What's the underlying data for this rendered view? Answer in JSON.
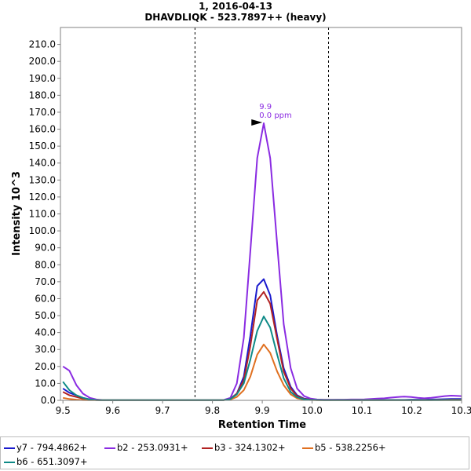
{
  "chart_data": {
    "type": "line",
    "title": "1, 2016-04-13",
    "subtitle": "DHAVDLIQK - 523.7897++ (heavy)",
    "xlabel": "Retention Time",
    "ylabel": "Intensity 10^3",
    "xlim": [
      9.495,
      10.3
    ],
    "ylim": [
      0,
      220
    ],
    "x_ticks": [
      "9.5",
      "9.6",
      "9.7",
      "9.8",
      "9.9",
      "10.0",
      "10.1",
      "10.2",
      "10.3"
    ],
    "y_ticks": [
      "0.0",
      "10.0",
      "20.0",
      "30.0",
      "40.0",
      "50.0",
      "60.0",
      "70.0",
      "80.0",
      "90.0",
      "100.0",
      "110.0",
      "120.0",
      "130.0",
      "140.0",
      "150.0",
      "160.0",
      "170.0",
      "180.0",
      "190.0",
      "200.0",
      "210.0"
    ],
    "vlines": [
      9.765,
      10.033
    ],
    "annotation": {
      "x": 9.905,
      "y": 163.5,
      "text_rt": "9.9",
      "text_ppm": "0.0 ppm",
      "color": "#8a2be2"
    },
    "x": [
      9.5,
      9.513,
      9.527,
      9.54,
      9.554,
      9.567,
      9.581,
      9.594,
      9.607,
      9.621,
      9.634,
      9.648,
      9.661,
      9.675,
      9.688,
      9.701,
      9.715,
      9.728,
      9.742,
      9.755,
      9.769,
      9.782,
      9.796,
      9.809,
      9.822,
      9.836,
      9.849,
      9.863,
      9.876,
      9.89,
      9.903,
      9.916,
      9.93,
      9.943,
      9.957,
      9.97,
      9.984,
      9.997,
      10.01,
      10.024,
      10.037,
      10.051,
      10.064,
      10.078,
      10.091,
      10.105,
      10.118,
      10.131,
      10.145,
      10.158,
      10.172,
      10.185,
      10.199,
      10.212,
      10.225,
      10.239,
      10.252,
      10.266,
      10.279,
      10.293,
      10.3
    ],
    "series": [
      {
        "name": "y7 - 794.4862+",
        "color": "#1a1acd",
        "values": [
          7,
          4.5,
          3,
          1.5,
          0.5,
          0.2,
          0.1,
          0.1,
          0.1,
          0.1,
          0.1,
          0.1,
          0.1,
          0.1,
          0.1,
          0.1,
          0.1,
          0.1,
          0.1,
          0.1,
          0.1,
          0.1,
          0.1,
          0.1,
          0.1,
          1,
          4,
          14,
          38,
          67.5,
          71.5,
          62,
          38,
          19,
          8,
          3,
          1,
          0.5,
          0.3,
          0.2,
          0.2,
          0.3,
          0.3,
          0.3,
          0.3,
          0.3,
          0.3,
          0.3,
          0.3,
          0.3,
          0.3,
          0.3,
          0.4,
          0.4,
          0.4,
          0.5,
          0.6,
          0.7,
          0.8,
          0.8,
          0.8
        ]
      },
      {
        "name": "b2 - 253.0931+",
        "color": "#8a2be2",
        "values": [
          20,
          17.5,
          9,
          4,
          1.5,
          0.5,
          0.2,
          0.2,
          0.2,
          0.2,
          0.2,
          0.2,
          0.2,
          0.2,
          0.2,
          0.2,
          0.2,
          0.2,
          0.2,
          0.2,
          0.2,
          0.2,
          0.2,
          0.2,
          0.2,
          1.5,
          10,
          37,
          88,
          143,
          163.5,
          143,
          92,
          45,
          19,
          7,
          2.5,
          1,
          0.5,
          0.4,
          0.4,
          0.4,
          0.4,
          0.5,
          0.5,
          0.6,
          0.8,
          1,
          1.2,
          1.6,
          2,
          2.2,
          2,
          1.5,
          1.2,
          1.5,
          2,
          2.5,
          2.8,
          2.6,
          2.5
        ]
      },
      {
        "name": "b3 - 324.1302+",
        "color": "#b22222",
        "values": [
          5,
          3,
          2,
          1,
          0.4,
          0.2,
          0.1,
          0.1,
          0.1,
          0.1,
          0.1,
          0.1,
          0.1,
          0.1,
          0.1,
          0.1,
          0.1,
          0.1,
          0.1,
          0.1,
          0.1,
          0.1,
          0.1,
          0.1,
          0.1,
          0.8,
          4,
          12,
          32,
          59,
          64,
          57,
          36,
          17,
          7,
          2.5,
          0.8,
          0.4,
          0.2,
          0.1,
          0.1,
          0.1,
          0.1,
          0.1,
          0.1,
          0.1,
          0.1,
          0.1,
          0.1,
          0.1,
          0.1,
          0.1,
          0.1,
          0.1,
          0.2,
          0.2,
          0.3,
          0.3,
          0.4,
          0.4,
          0.4
        ]
      },
      {
        "name": "b5 - 538.2256+",
        "color": "#e07020",
        "values": [
          1.5,
          0.8,
          0.4,
          0.2,
          0.1,
          0.1,
          0.1,
          0.1,
          0.1,
          0.1,
          0.1,
          0.1,
          0.1,
          0.1,
          0.1,
          0.1,
          0.1,
          0.1,
          0.1,
          0.1,
          0.1,
          0.1,
          0.1,
          0.1,
          0.1,
          0.5,
          2,
          6,
          14,
          27,
          33,
          28,
          17,
          9,
          3.5,
          1.2,
          0.4,
          0.2,
          0.1,
          0.1,
          0.1,
          0.1,
          0.1,
          0.1,
          0.1,
          0.1,
          0.1,
          0.1,
          0.1,
          0.1,
          0.1,
          0.1,
          0.1,
          0.1,
          0.1,
          0.1,
          0.1,
          0.1,
          0.1,
          0.1,
          0.1
        ]
      },
      {
        "name": "b6 - 651.3097+",
        "color": "#0e8a87",
        "values": [
          11,
          6,
          3,
          1.5,
          0.5,
          0.2,
          0.1,
          0.1,
          0.1,
          0.1,
          0.1,
          0.1,
          0.1,
          0.1,
          0.1,
          0.1,
          0.1,
          0.1,
          0.1,
          0.1,
          0.1,
          0.1,
          0.1,
          0.1,
          0.1,
          0.8,
          3.5,
          10,
          24,
          41,
          49.5,
          43,
          27,
          13,
          5,
          1.8,
          0.6,
          0.3,
          0.2,
          0.1,
          0.1,
          0.1,
          0.1,
          0.1,
          0.1,
          0.1,
          0.1,
          0.1,
          0.1,
          0.1,
          0.1,
          0.1,
          0.1,
          0.1,
          0.1,
          0.1,
          0.1,
          0.2,
          0.2,
          0.2,
          0.2
        ]
      }
    ]
  }
}
